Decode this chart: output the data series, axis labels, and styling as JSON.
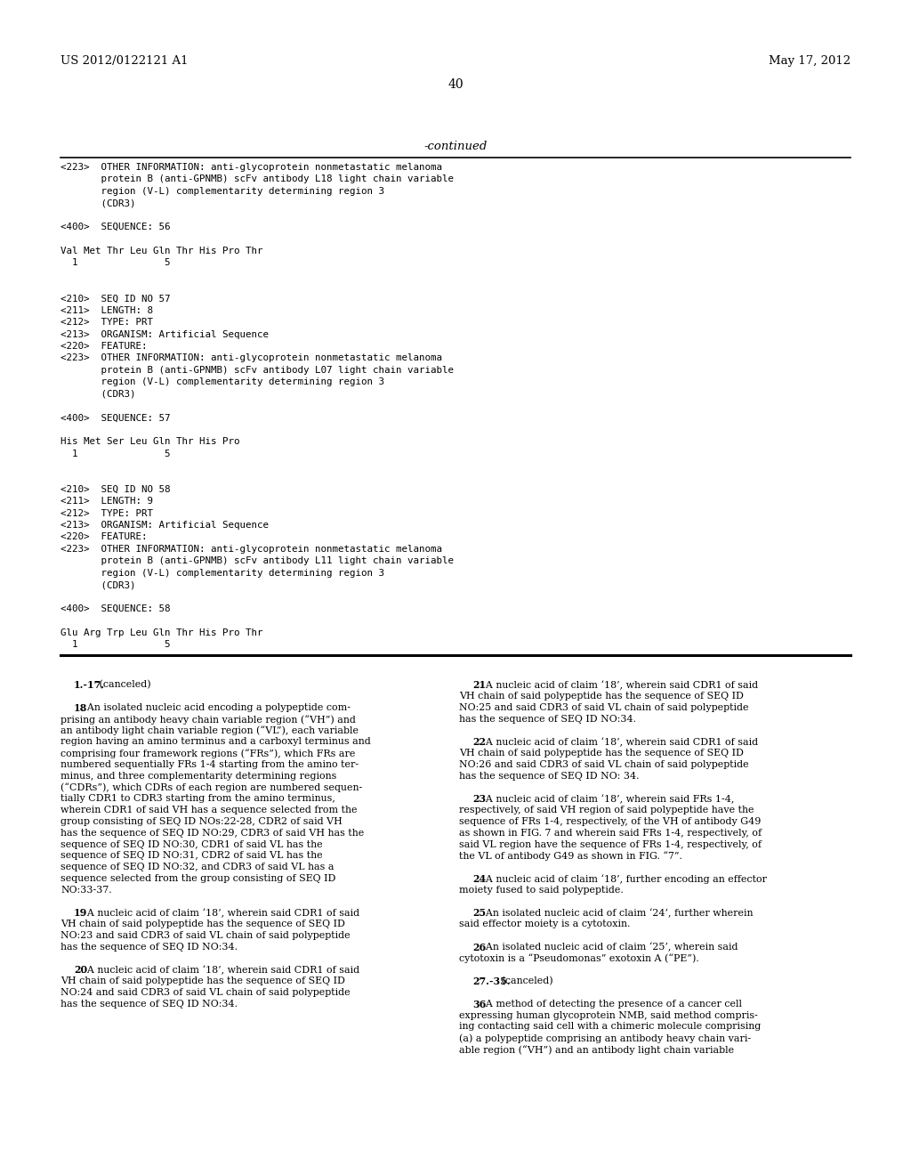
{
  "background_color": "#ffffff",
  "header_left": "US 2012/0122121 A1",
  "header_right": "May 17, 2012",
  "page_number": "40",
  "continued_label": "-continued",
  "top_section_lines": [
    "<223>  OTHER INFORMATION: anti-glycoprotein nonmetastatic melanoma",
    "       protein B (anti-GPNMB) scFv antibody L18 light chain variable",
    "       region (V-L) complementarity determining region 3",
    "       (CDR3)",
    "",
    "<400>  SEQUENCE: 56",
    "",
    "Val Met Thr Leu Gln Thr His Pro Thr",
    "  1               5",
    "",
    "",
    "<210>  SEQ ID NO 57",
    "<211>  LENGTH: 8",
    "<212>  TYPE: PRT",
    "<213>  ORGANISM: Artificial Sequence",
    "<220>  FEATURE:",
    "<223>  OTHER INFORMATION: anti-glycoprotein nonmetastatic melanoma",
    "       protein B (anti-GPNMB) scFv antibody L07 light chain variable",
    "       region (V-L) complementarity determining region 3",
    "       (CDR3)",
    "",
    "<400>  SEQUENCE: 57",
    "",
    "His Met Ser Leu Gln Thr His Pro",
    "  1               5",
    "",
    "",
    "<210>  SEQ ID NO 58",
    "<211>  LENGTH: 9",
    "<212>  TYPE: PRT",
    "<213>  ORGANISM: Artificial Sequence",
    "<220>  FEATURE:",
    "<223>  OTHER INFORMATION: anti-glycoprotein nonmetastatic melanoma",
    "       protein B (anti-GPNMB) scFv antibody L11 light chain variable",
    "       region (V-L) complementarity determining region 3",
    "       (CDR3)",
    "",
    "<400>  SEQUENCE: 58",
    "",
    "Glu Arg Trp Leu Gln Thr His Pro Thr",
    "  1               5"
  ],
  "claims_col1": [
    [
      "    ",
      "1.-17.",
      " (canceled)",
      false,
      true,
      false
    ],
    [
      "",
      "",
      "",
      false,
      false,
      false
    ],
    [
      "    ",
      "18",
      ". An isolated nucleic acid encoding a polypeptide com-",
      false,
      true,
      false
    ],
    [
      "prising an antibody heavy chain variable region (“VH”) and",
      "",
      "",
      false,
      false,
      false
    ],
    [
      "an antibody light chain variable region (“VL”), each variable",
      "",
      "",
      false,
      false,
      false
    ],
    [
      "region having an amino terminus and a carboxyl terminus and",
      "",
      "",
      false,
      false,
      false
    ],
    [
      "comprising four framework regions (“FRs”), which FRs are",
      "",
      "",
      false,
      false,
      false
    ],
    [
      "numbered sequentially FRs 1-4 starting from the amino ter-",
      "",
      "",
      false,
      false,
      false
    ],
    [
      "minus, and three complementarity determining regions",
      "",
      "",
      false,
      false,
      false
    ],
    [
      "(“CDRs”), which CDRs of each region are numbered sequen-",
      "",
      "",
      false,
      false,
      false
    ],
    [
      "tially CDR1 to CDR3 starting from the amino terminus,",
      "",
      "",
      false,
      false,
      false
    ],
    [
      "wherein CDR1 of said VH has a sequence selected from the",
      "",
      "",
      false,
      false,
      false
    ],
    [
      "group consisting of SEQ ID NOs:22-28, CDR2 of said VH",
      "",
      "",
      false,
      false,
      false
    ],
    [
      "has the sequence of SEQ ID NO:29, CDR3 of said VH has the",
      "",
      "",
      false,
      false,
      false
    ],
    [
      "sequence of SEQ ID NO:30, CDR1 of said VL has the",
      "",
      "",
      false,
      false,
      false
    ],
    [
      "sequence of SEQ ID NO:31, CDR2 of said VL has the",
      "",
      "",
      false,
      false,
      false
    ],
    [
      "sequence of SEQ ID NO:32, and CDR3 of said VL has a",
      "",
      "",
      false,
      false,
      false
    ],
    [
      "sequence selected from the group consisting of SEQ ID",
      "",
      "",
      false,
      false,
      false
    ],
    [
      "NO:33-37.",
      "",
      "",
      false,
      false,
      false
    ],
    [
      "",
      "",
      "",
      false,
      false,
      false
    ],
    [
      "    ",
      "19",
      ". A nucleic acid of claim ‘18’, wherein said CDR1 of said",
      false,
      true,
      false
    ],
    [
      "VH chain of said polypeptide has the sequence of SEQ ID",
      "",
      "",
      false,
      false,
      false
    ],
    [
      "NO:23 and said CDR3 of said VL chain of said polypeptide",
      "",
      "",
      false,
      false,
      false
    ],
    [
      "has the sequence of SEQ ID NO:34.",
      "",
      "",
      false,
      false,
      false
    ],
    [
      "",
      "",
      "",
      false,
      false,
      false
    ],
    [
      "    ",
      "20",
      ". A nucleic acid of claim ‘18’, wherein said CDR1 of said",
      false,
      true,
      false
    ],
    [
      "VH chain of said polypeptide has the sequence of SEQ ID",
      "",
      "",
      false,
      false,
      false
    ],
    [
      "NO:24 and said CDR3 of said VL chain of said polypeptide",
      "",
      "",
      false,
      false,
      false
    ],
    [
      "has the sequence of SEQ ID NO:34.",
      "",
      "",
      false,
      false,
      false
    ]
  ],
  "claims_col2": [
    [
      "    ",
      "21",
      ". A nucleic acid of claim ‘18’, wherein said CDR1 of said",
      false,
      true,
      false
    ],
    [
      "VH chain of said polypeptide has the sequence of SEQ ID",
      "",
      "",
      false,
      false,
      false
    ],
    [
      "NO:25 and said CDR3 of said VL chain of said polypeptide",
      "",
      "",
      false,
      false,
      false
    ],
    [
      "has the sequence of SEQ ID NO:34.",
      "",
      "",
      false,
      false,
      false
    ],
    [
      "",
      "",
      "",
      false,
      false,
      false
    ],
    [
      "    ",
      "22",
      ". A nucleic acid of claim ‘18’, wherein said CDR1 of said",
      false,
      true,
      false
    ],
    [
      "VH chain of said polypeptide has the sequence of SEQ ID",
      "",
      "",
      false,
      false,
      false
    ],
    [
      "NO:26 and said CDR3 of said VL chain of said polypeptide",
      "",
      "",
      false,
      false,
      false
    ],
    [
      "has the sequence of SEQ ID NO: 34.",
      "",
      "",
      false,
      false,
      false
    ],
    [
      "",
      "",
      "",
      false,
      false,
      false
    ],
    [
      "    ",
      "23",
      ". A nucleic acid of claim ‘18’, wherein said FRs 1-4,",
      false,
      true,
      false
    ],
    [
      "respectively, of said VH region of said polypeptide have the",
      "",
      "",
      false,
      false,
      false
    ],
    [
      "sequence of FRs 1-4, respectively, of the VH of antibody G49",
      "",
      "",
      false,
      false,
      false
    ],
    [
      "as shown in FIG. 7 and wherein said FRs 1-4, respectively, of",
      "",
      "",
      false,
      false,
      false
    ],
    [
      "said VL region have the sequence of FRs 1-4, respectively, of",
      "",
      "",
      false,
      false,
      false
    ],
    [
      "the VL of antibody G49 as shown in FIG. “7”.",
      "",
      "",
      false,
      false,
      false
    ],
    [
      "",
      "",
      "",
      false,
      false,
      false
    ],
    [
      "    ",
      "24",
      ". A nucleic acid of claim ‘18’, further encoding an effector",
      false,
      true,
      false
    ],
    [
      "moiety fused to said polypeptide.",
      "",
      "",
      false,
      false,
      false
    ],
    [
      "",
      "",
      "",
      false,
      false,
      false
    ],
    [
      "    ",
      "25",
      ". An isolated nucleic acid of claim ‘24’, further wherein",
      false,
      true,
      false
    ],
    [
      "said effector moiety is a cytotoxin.",
      "",
      "",
      false,
      false,
      false
    ],
    [
      "",
      "",
      "",
      false,
      false,
      false
    ],
    [
      "    ",
      "26",
      ". An isolated nucleic acid of claim ‘25’, wherein said",
      false,
      true,
      false
    ],
    [
      "cytotoxin is a “Pseudomonas” exotoxin A (“PE”).",
      "",
      "",
      false,
      false,
      false
    ],
    [
      "",
      "",
      "",
      false,
      false,
      false
    ],
    [
      "    ",
      "27.-35.",
      " (canceled)",
      false,
      true,
      false
    ],
    [
      "",
      "",
      "",
      false,
      false,
      false
    ],
    [
      "    ",
      "36",
      ". A method of detecting the presence of a cancer cell",
      false,
      true,
      false
    ],
    [
      "expressing human glycoprotein NMB, said method compris-",
      "",
      "",
      false,
      false,
      false
    ],
    [
      "ing contacting said cell with a chimeric molecule comprising",
      "",
      "",
      false,
      false,
      false
    ],
    [
      "(a) a polypeptide comprising an antibody heavy chain vari-",
      "",
      "",
      false,
      false,
      false
    ],
    [
      "able region (“VH”) and an antibody light chain variable",
      "",
      "",
      false,
      false,
      false
    ]
  ]
}
